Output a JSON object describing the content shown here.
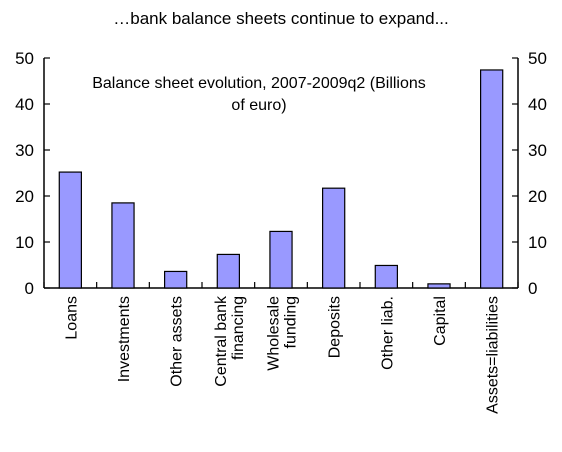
{
  "chart_data": {
    "type": "bar",
    "title": "…bank balance sheets continue to expand...",
    "annotation": [
      "Balance sheet evolution, 2007-2009q2 (Billions",
      "of euro)"
    ],
    "categories": [
      [
        "Loans"
      ],
      [
        "Investments"
      ],
      [
        "Other assets"
      ],
      [
        "Central bank",
        "financing"
      ],
      [
        "Wholesale",
        "funding"
      ],
      [
        "Deposits"
      ],
      [
        "Other liab."
      ],
      [
        "Capital"
      ],
      [
        "Assets=liabilities"
      ]
    ],
    "values": [
      25.2,
      18.5,
      3.6,
      7.3,
      12.3,
      21.7,
      4.9,
      0.9,
      47.4
    ],
    "ylim": [
      0,
      50
    ],
    "yticks": [
      0,
      10,
      20,
      30,
      40,
      50
    ],
    "ytick_labels": [
      "0",
      "10",
      "20",
      "30",
      "40",
      "50"
    ],
    "dual_y_axis": true,
    "grid": false,
    "colors": {
      "bar_fill": "#9999ff",
      "bar_stroke": "#000000",
      "axis": "#000000"
    }
  }
}
